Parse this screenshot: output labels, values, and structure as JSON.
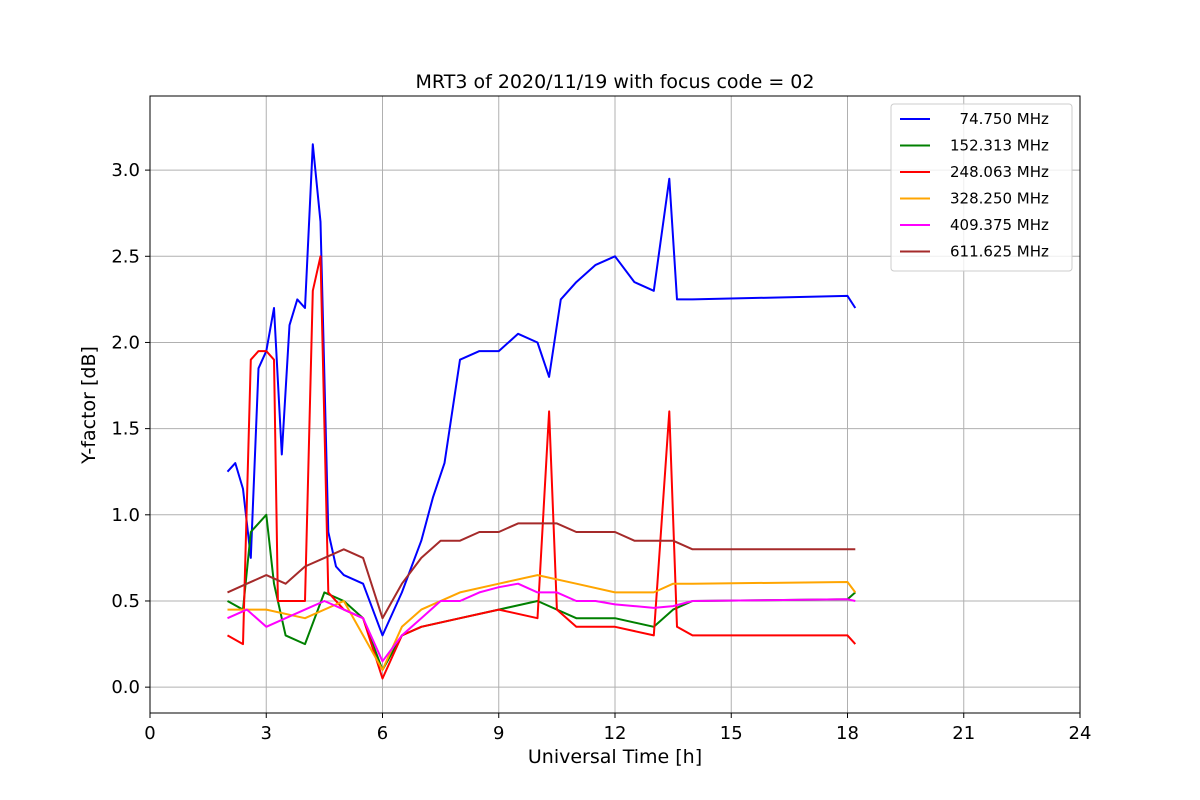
{
  "chart_data": {
    "type": "line",
    "title": "MRT3 of 2020/11/19 with focus code = 02",
    "xlabel": "Universal Time [h]",
    "ylabel": "Y-factor [dB]",
    "xlim": [
      0,
      24
    ],
    "ylim": [
      -0.15,
      3.43
    ],
    "xticks": [
      0,
      3,
      6,
      9,
      12,
      15,
      18,
      21,
      24
    ],
    "yticks": [
      0.0,
      0.5,
      1.0,
      1.5,
      2.0,
      2.5,
      3.0
    ],
    "xtick_labels": [
      "0",
      "3",
      "6",
      "9",
      "12",
      "15",
      "18",
      "21",
      "24"
    ],
    "ytick_labels": [
      "0.0",
      "0.5",
      "1.0",
      "1.5",
      "2.0",
      "2.5",
      "3.0"
    ],
    "grid": true,
    "legend_position": "top-right",
    "series": [
      {
        "name": "  74.750 MHz",
        "color": "#0000ff",
        "x": [
          2.0,
          2.2,
          2.4,
          2.6,
          2.8,
          3.0,
          3.2,
          3.4,
          3.6,
          3.8,
          4.0,
          4.2,
          4.4,
          4.6,
          4.8,
          5.0,
          5.5,
          6.0,
          6.5,
          7.0,
          7.3,
          7.6,
          8.0,
          8.5,
          9.0,
          9.5,
          10.0,
          10.3,
          10.6,
          11.0,
          11.5,
          12.0,
          12.5,
          13.0,
          13.4,
          13.6,
          14.0,
          18.0,
          18.2
        ],
        "y": [
          1.25,
          1.3,
          1.15,
          0.75,
          1.85,
          1.95,
          2.2,
          1.35,
          2.1,
          2.25,
          2.2,
          3.15,
          2.7,
          0.9,
          0.7,
          0.65,
          0.6,
          0.3,
          0.55,
          0.85,
          1.1,
          1.3,
          1.9,
          1.95,
          1.95,
          2.05,
          2.0,
          1.8,
          2.25,
          2.35,
          2.45,
          2.5,
          2.35,
          2.3,
          2.95,
          2.25,
          2.25,
          2.27,
          2.2
        ]
      },
      {
        "name": "152.313 MHz",
        "color": "#008000",
        "x": [
          2.0,
          2.4,
          2.6,
          2.8,
          3.0,
          3.2,
          3.5,
          4.0,
          4.5,
          5.0,
          5.5,
          6.0,
          6.5,
          7.0,
          8.0,
          9.0,
          10.0,
          11.0,
          12.0,
          13.0,
          13.5,
          14.0,
          18.0,
          18.2
        ],
        "y": [
          0.5,
          0.45,
          0.9,
          0.95,
          1.0,
          0.6,
          0.3,
          0.25,
          0.55,
          0.5,
          0.4,
          0.1,
          0.3,
          0.35,
          0.4,
          0.45,
          0.5,
          0.4,
          0.4,
          0.35,
          0.45,
          0.5,
          0.51,
          0.55
        ]
      },
      {
        "name": "248.063 MHz",
        "color": "#ff0000",
        "x": [
          2.0,
          2.4,
          2.6,
          2.8,
          3.0,
          3.2,
          3.3,
          4.0,
          4.2,
          4.4,
          4.6,
          5.0,
          5.5,
          6.0,
          6.5,
          7.0,
          8.0,
          9.0,
          10.0,
          10.3,
          10.5,
          11.0,
          12.0,
          13.0,
          13.4,
          13.6,
          14.0,
          18.0,
          18.2
        ],
        "y": [
          0.3,
          0.25,
          1.9,
          1.95,
          1.95,
          1.9,
          0.5,
          0.5,
          2.3,
          2.5,
          0.55,
          0.45,
          0.4,
          0.05,
          0.3,
          0.35,
          0.4,
          0.45,
          0.4,
          1.6,
          0.45,
          0.35,
          0.35,
          0.3,
          1.6,
          0.35,
          0.3,
          0.3,
          0.25
        ]
      },
      {
        "name": "328.250 MHz",
        "color": "#ffa500",
        "x": [
          2.0,
          3.0,
          4.0,
          5.0,
          6.0,
          6.5,
          7.0,
          8.0,
          9.0,
          10.0,
          11.0,
          12.0,
          13.0,
          13.5,
          14.0,
          18.0,
          18.2
        ],
        "y": [
          0.45,
          0.45,
          0.4,
          0.5,
          0.1,
          0.35,
          0.45,
          0.55,
          0.6,
          0.65,
          0.6,
          0.55,
          0.55,
          0.6,
          0.6,
          0.61,
          0.55
        ]
      },
      {
        "name": "409.375 MHz",
        "color": "#ff00ff",
        "x": [
          2.0,
          2.5,
          3.0,
          3.5,
          4.0,
          4.5,
          5.0,
          5.5,
          6.0,
          6.5,
          7.0,
          7.5,
          8.0,
          8.5,
          9.0,
          9.5,
          10.0,
          10.5,
          11.0,
          11.5,
          12.0,
          12.5,
          13.0,
          13.5,
          14.0,
          18.0,
          18.2
        ],
        "y": [
          0.4,
          0.45,
          0.35,
          0.4,
          0.45,
          0.5,
          0.45,
          0.4,
          0.15,
          0.3,
          0.4,
          0.5,
          0.5,
          0.55,
          0.58,
          0.6,
          0.55,
          0.55,
          0.5,
          0.5,
          0.48,
          0.47,
          0.46,
          0.47,
          0.5,
          0.51,
          0.5
        ]
      },
      {
        "name": "611.625 MHz",
        "color": "#a52a2a",
        "x": [
          2.0,
          2.5,
          3.0,
          3.5,
          4.0,
          4.5,
          5.0,
          5.5,
          6.0,
          6.5,
          7.0,
          7.5,
          8.0,
          8.5,
          9.0,
          9.5,
          10.0,
          10.5,
          11.0,
          11.5,
          12.0,
          12.5,
          13.0,
          13.5,
          14.0,
          18.0,
          18.2
        ],
        "y": [
          0.55,
          0.6,
          0.65,
          0.6,
          0.7,
          0.75,
          0.8,
          0.75,
          0.4,
          0.6,
          0.75,
          0.85,
          0.85,
          0.9,
          0.9,
          0.95,
          0.95,
          0.95,
          0.9,
          0.9,
          0.9,
          0.85,
          0.85,
          0.85,
          0.8,
          0.8,
          0.8
        ]
      }
    ]
  }
}
